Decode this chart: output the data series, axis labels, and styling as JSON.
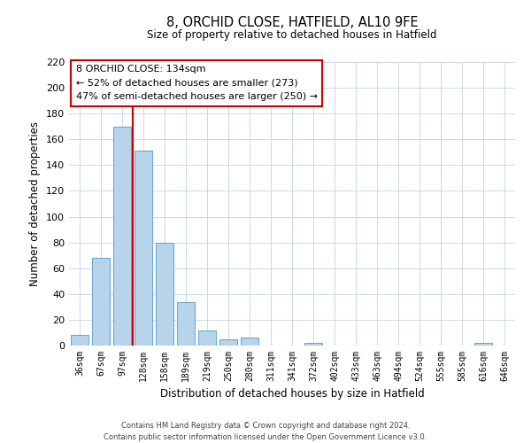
{
  "title": "8, ORCHID CLOSE, HATFIELD, AL10 9FE",
  "subtitle": "Size of property relative to detached houses in Hatfield",
  "xlabel": "Distribution of detached houses by size in Hatfield",
  "ylabel": "Number of detached properties",
  "bar_labels": [
    "36sqm",
    "67sqm",
    "97sqm",
    "128sqm",
    "158sqm",
    "189sqm",
    "219sqm",
    "250sqm",
    "280sqm",
    "311sqm",
    "341sqm",
    "372sqm",
    "402sqm",
    "433sqm",
    "463sqm",
    "494sqm",
    "524sqm",
    "555sqm",
    "585sqm",
    "616sqm",
    "646sqm"
  ],
  "bar_values": [
    8,
    68,
    170,
    151,
    80,
    34,
    12,
    5,
    6,
    0,
    0,
    2,
    0,
    0,
    0,
    0,
    0,
    0,
    0,
    2,
    0
  ],
  "bar_color": "#b8d4ea",
  "bar_edge_color": "#6aaad4",
  "vline_x_index": 3,
  "vline_color": "#cc0000",
  "ylim": [
    0,
    220
  ],
  "yticks": [
    0,
    20,
    40,
    60,
    80,
    100,
    120,
    140,
    160,
    180,
    200,
    220
  ],
  "annotation_text": "8 ORCHID CLOSE: 134sqm\n← 52% of detached houses are smaller (273)\n47% of semi-detached houses are larger (250) →",
  "annotation_box_color": "#ffffff",
  "annotation_box_edge": "#cc0000",
  "footer_line1": "Contains HM Land Registry data © Crown copyright and database right 2024.",
  "footer_line2": "Contains public sector information licensed under the Open Government Licence v3.0.",
  "background_color": "#ffffff",
  "grid_color": "#ccd8e8"
}
